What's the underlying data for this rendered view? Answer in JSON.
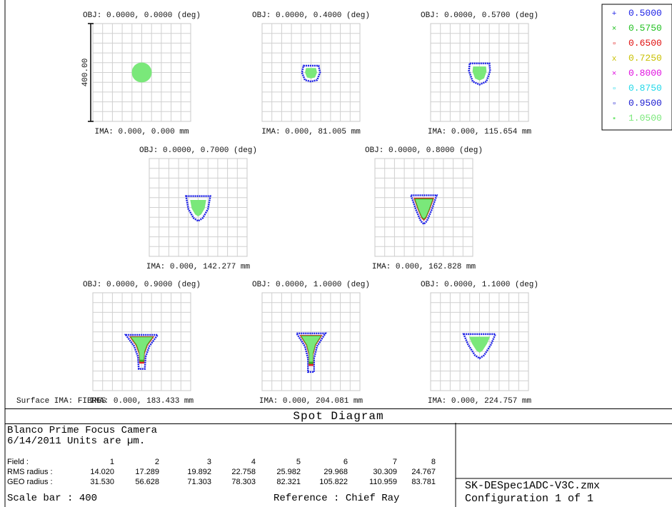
{
  "chart_data": {
    "type": "scatter",
    "title": "Spot Diagram",
    "legend": {
      "placement": "top-right",
      "entries": [
        {
          "label": "0.5000",
          "color": "#1e22e6",
          "symbol": "+"
        },
        {
          "label": "0.5750",
          "color": "#22c022",
          "symbol": "×"
        },
        {
          "label": "0.6500",
          "color": "#e01010",
          "symbol": "▫"
        },
        {
          "label": "0.7250",
          "color": "#c8c000",
          "symbol": "x"
        },
        {
          "label": "0.8000",
          "color": "#e010e0",
          "symbol": "×"
        },
        {
          "label": "0.8750",
          "color": "#20d8e8",
          "symbol": "▫"
        },
        {
          "label": "0.9500",
          "color": "#1a1ad0",
          "symbol": "▫"
        },
        {
          "label": "1.0500",
          "color": "#7ae87a",
          "symbol": "▪"
        }
      ]
    },
    "scale_bar": {
      "label": "400.00",
      "value_um": 400
    },
    "fields": [
      {
        "obj": "OBJ: 0.0000, 0.0000 (deg)",
        "ima": "IMA: 0.000, 0.000 mm",
        "shape": "circle",
        "rms": 14.02,
        "geo": 31.53
      },
      {
        "obj": "OBJ: 0.0000, 0.4000 (deg)",
        "ima": "IMA: 0.000, 81.005 mm",
        "shape": "blob",
        "rms": 17.289,
        "geo": 56.628
      },
      {
        "obj": "OBJ: 0.0000, 0.5700 (deg)",
        "ima": "IMA: 0.000, 115.654 mm",
        "shape": "blob2",
        "rms": 19.892,
        "geo": 71.303
      },
      {
        "obj": "OBJ: 0.0000, 0.7000 (deg)",
        "ima": "IMA: 0.000, 142.277 mm",
        "shape": "tri1",
        "rms": 22.758,
        "geo": 78.303
      },
      {
        "obj": "OBJ: 0.0000, 0.8000 (deg)",
        "ima": "IMA: 0.000, 162.828 mm",
        "shape": "tri2",
        "rms": 25.982,
        "geo": 82.321
      },
      {
        "obj": "OBJ: 0.0000, 0.9000 (deg)",
        "ima": "IMA: 0.000, 183.433 mm",
        "shape": "v1",
        "rms": 29.968,
        "geo": 105.822
      },
      {
        "obj": "OBJ: 0.0000, 1.0000 (deg)",
        "ima": "IMA: 0.000, 204.081 mm",
        "shape": "v2",
        "rms": 30.309,
        "geo": 110.959
      },
      {
        "obj": "OBJ: 0.0000, 1.1000 (deg)",
        "ima": "IMA: 0.000, 224.757 mm",
        "shape": "tri3",
        "rms": 24.767,
        "geo": 83.781
      }
    ]
  },
  "surface_label": "Surface IMA: FIBRES",
  "info": {
    "line1": "Blanco Prime Focus Camera",
    "line2": "6/14/2011  Units are µm.",
    "field_label": "Field    :",
    "rms_label": "RMS radius :",
    "geo_label": "GEO radius :",
    "field_numbers": [
      "1",
      "2",
      "3",
      "4",
      "5",
      "6",
      "7",
      "8"
    ],
    "rms_values": [
      "14.020",
      "17.289",
      "19.892",
      "22.758",
      "25.982",
      "29.968",
      "30.309",
      "24.767"
    ],
    "geo_values": [
      "31.530",
      "56.628",
      "71.303",
      "78.303",
      "82.321",
      "105.822",
      "110.959",
      "83.781"
    ],
    "scale_bar": "Scale bar  : 400",
    "reference": "Reference  : Chief Ray"
  },
  "file_name": "SK-DESpec1ADC-V3C.zmx",
  "configuration": "Configuration 1 of 1"
}
